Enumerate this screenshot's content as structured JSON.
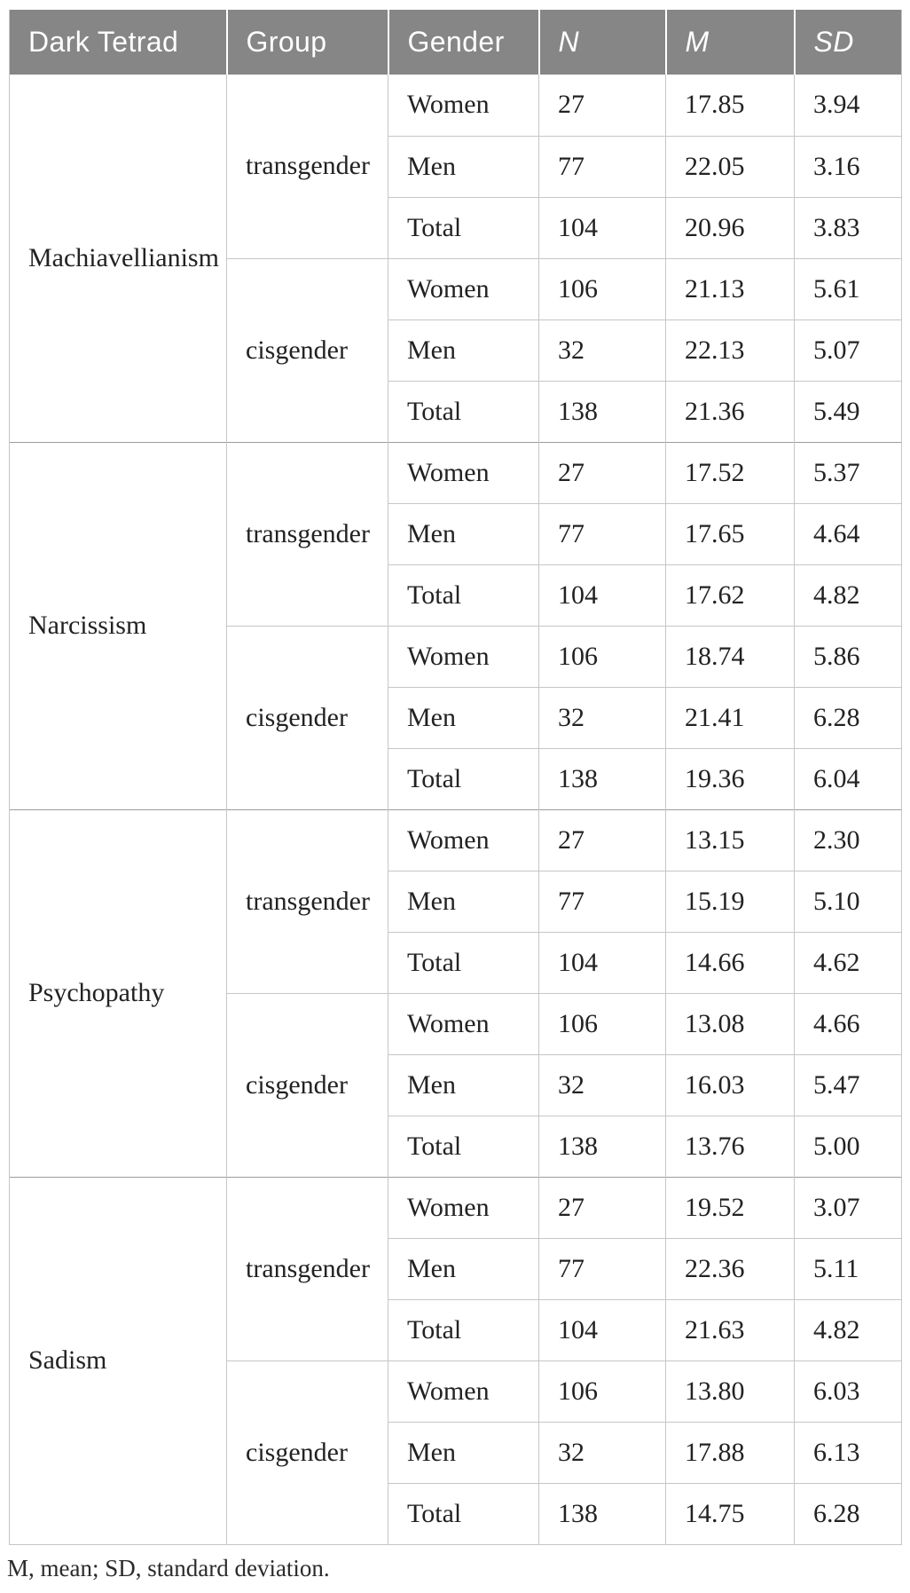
{
  "colors": {
    "header_bg": "#868686",
    "header_text": "#ffffff",
    "body_text": "#222222",
    "row_border": "#c6c6c6",
    "section_border": "#9c9c9c",
    "page_bg": "#ffffff",
    "footnote_text": "#2b2b2b"
  },
  "table": {
    "columns": [
      "Dark Tetrad",
      "Group",
      "Gender",
      "N",
      "M",
      "SD"
    ],
    "italic_columns": [
      "N",
      "M",
      "SD"
    ],
    "cell_headers": [
      "Gender",
      "N",
      "M",
      "SD"
    ],
    "sections": [
      {
        "trait": "Machiavellianism",
        "groups": [
          {
            "group": "transgender",
            "rows": [
              [
                "Women",
                "27",
                "17.85",
                "3.94"
              ],
              [
                "Men",
                "77",
                "22.05",
                "3.16"
              ],
              [
                "Total",
                "104",
                "20.96",
                "3.83"
              ]
            ]
          },
          {
            "group": "cisgender",
            "rows": [
              [
                "Women",
                "106",
                "21.13",
                "5.61"
              ],
              [
                "Men",
                "32",
                "22.13",
                "5.07"
              ],
              [
                "Total",
                "138",
                "21.36",
                "5.49"
              ]
            ]
          }
        ]
      },
      {
        "trait": "Narcissism",
        "groups": [
          {
            "group": "transgender",
            "rows": [
              [
                "Women",
                "27",
                "17.52",
                "5.37"
              ],
              [
                "Men",
                "77",
                "17.65",
                "4.64"
              ],
              [
                "Total",
                "104",
                "17.62",
                "4.82"
              ]
            ]
          },
          {
            "group": "cisgender",
            "rows": [
              [
                "Women",
                "106",
                "18.74",
                "5.86"
              ],
              [
                "Men",
                "32",
                "21.41",
                "6.28"
              ],
              [
                "Total",
                "138",
                "19.36",
                "6.04"
              ]
            ]
          }
        ]
      },
      {
        "trait": "Psychopathy",
        "groups": [
          {
            "group": "transgender",
            "rows": [
              [
                "Women",
                "27",
                "13.15",
                "2.30"
              ],
              [
                "Men",
                "77",
                "15.19",
                "5.10"
              ],
              [
                "Total",
                "104",
                "14.66",
                "4.62"
              ]
            ]
          },
          {
            "group": "cisgender",
            "rows": [
              [
                "Women",
                "106",
                "13.08",
                "4.66"
              ],
              [
                "Men",
                "32",
                "16.03",
                "5.47"
              ],
              [
                "Total",
                "138",
                "13.76",
                "5.00"
              ]
            ]
          }
        ]
      },
      {
        "trait": "Sadism",
        "groups": [
          {
            "group": "transgender",
            "rows": [
              [
                "Women",
                "27",
                "19.52",
                "3.07"
              ],
              [
                "Men",
                "77",
                "22.36",
                "5.11"
              ],
              [
                "Total",
                "104",
                "21.63",
                "4.82"
              ]
            ]
          },
          {
            "group": "cisgender",
            "rows": [
              [
                "Women",
                "106",
                "13.80",
                "6.03"
              ],
              [
                "Men",
                "32",
                "17.88",
                "6.13"
              ],
              [
                "Total",
                "138",
                "14.75",
                "6.28"
              ]
            ]
          }
        ]
      }
    ],
    "footnote": "M, mean; SD, standard deviation."
  }
}
